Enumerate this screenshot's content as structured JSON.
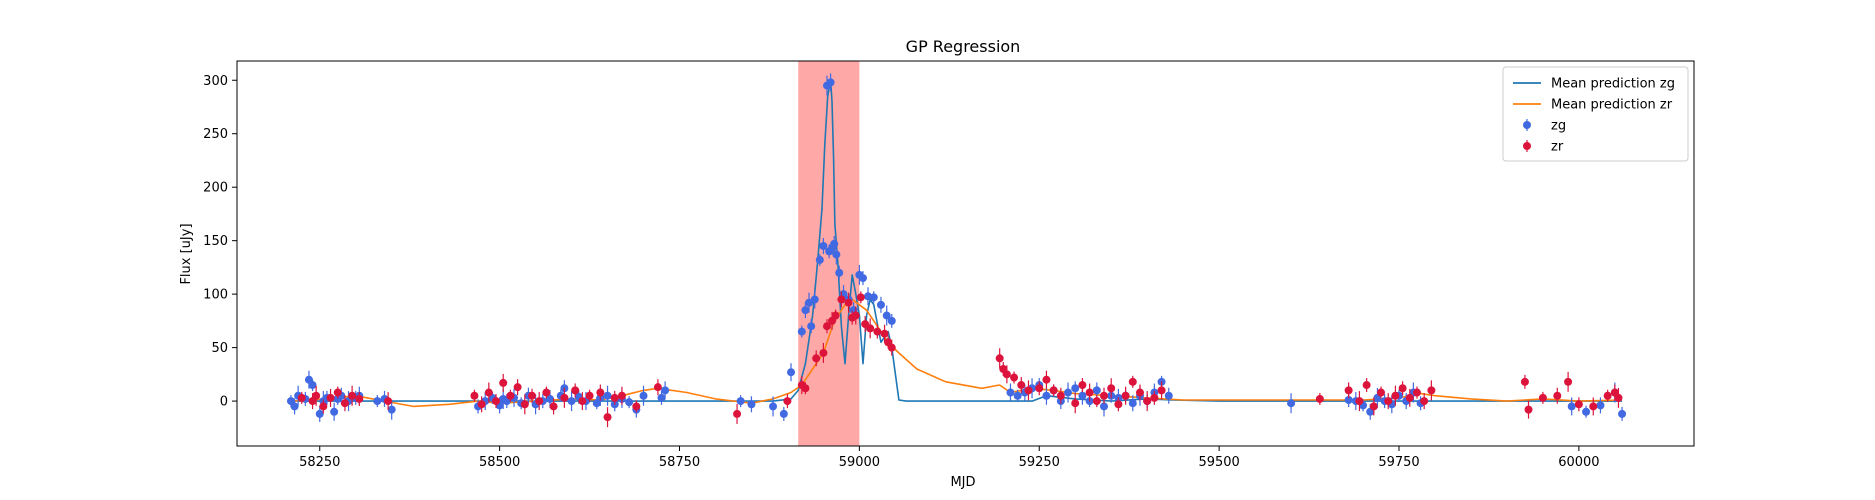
{
  "chart_data": {
    "type": "scatter",
    "title": "GP Regression",
    "xlabel": "MJD",
    "ylabel": "Flux [uJy]",
    "xlim": [
      58135,
      60160
    ],
    "ylim": [
      -42,
      318
    ],
    "xticks": [
      58250,
      58500,
      58750,
      59000,
      59250,
      59500,
      59750,
      60000
    ],
    "yticks": [
      0,
      50,
      100,
      150,
      200,
      250,
      300
    ],
    "grid": false,
    "legend_position": "top-right",
    "highlight_band": {
      "x0": 58915,
      "x1": 59000,
      "color": "#ff9999"
    },
    "legend": [
      {
        "label": "Mean prediction zg",
        "kind": "line",
        "color": "#1f77b4"
      },
      {
        "label": "Mean prediction zr",
        "kind": "line",
        "color": "#ff7f0e"
      },
      {
        "label": "zg",
        "kind": "marker",
        "color": "#4169e1"
      },
      {
        "label": "zr",
        "kind": "marker",
        "color": "#dc143c"
      }
    ],
    "series": [
      {
        "name": "Mean prediction zg",
        "type": "line",
        "color": "#1f77b4",
        "x": [
          58215,
          58260,
          58300,
          58340,
          58400,
          58500,
          58600,
          58700,
          58760,
          58800,
          58880,
          58905,
          58915,
          58925,
          58935,
          58942,
          58948,
          58952,
          58956,
          58960,
          58962,
          58964,
          58966,
          58970,
          58975,
          58980,
          58985,
          58990,
          58995,
          59000,
          59005,
          59010,
          59015,
          59020,
          59025,
          59030,
          59040,
          59045,
          59055,
          59065,
          59080,
          59150,
          59200,
          59240,
          59260,
          59300,
          59350,
          59400,
          59435,
          59500,
          59600,
          59700,
          59800,
          59900,
          60000,
          60060
        ],
        "y": [
          0,
          0,
          0,
          0,
          0,
          0,
          0,
          0,
          0,
          0,
          0,
          2,
          10,
          35,
          80,
          130,
          180,
          240,
          285,
          300,
          280,
          230,
          165,
          130,
          70,
          35,
          80,
          118,
          100,
          80,
          35,
          80,
          95,
          90,
          72,
          55,
          65,
          50,
          1,
          0,
          0,
          0,
          0,
          0,
          5,
          2,
          0,
          2,
          1,
          0,
          0,
          0,
          0,
          0,
          0,
          0
        ]
      },
      {
        "name": "Mean prediction zr",
        "type": "line",
        "color": "#ff7f0e",
        "x": [
          58215,
          58260,
          58300,
          58340,
          58380,
          58430,
          58470,
          58500,
          58550,
          58600,
          58640,
          58670,
          58700,
          58720,
          58760,
          58800,
          58850,
          58880,
          58905,
          58920,
          58935,
          58950,
          58965,
          58980,
          58990,
          59000,
          59010,
          59020,
          59030,
          59040,
          59055,
          59080,
          59120,
          59170,
          59195,
          59210,
          59240,
          59270,
          59300,
          59350,
          59400,
          59450,
          59500,
          59550,
          59600,
          59650,
          59700,
          59750,
          59780,
          59800,
          59850,
          59900,
          59950,
          60000,
          60060
        ],
        "y": [
          0,
          2,
          5,
          0,
          -5,
          -3,
          0,
          -2,
          0,
          2,
          1,
          5,
          10,
          12,
          8,
          2,
          -2,
          2,
          8,
          15,
          30,
          45,
          75,
          90,
          95,
          90,
          85,
          75,
          65,
          55,
          45,
          30,
          18,
          12,
          15,
          8,
          12,
          10,
          7,
          5,
          3,
          1,
          1,
          1,
          1,
          1,
          1,
          3,
          7,
          5,
          2,
          0,
          2,
          0,
          1
        ]
      },
      {
        "name": "zg",
        "type": "scatter",
        "color": "#4169e1",
        "x": [
          58210,
          58215,
          58220,
          58230,
          58235,
          58240,
          58250,
          58255,
          58260,
          58270,
          58275,
          58280,
          58290,
          58300,
          58305,
          58330,
          58340,
          58350,
          58470,
          58480,
          58490,
          58500,
          58505,
          58510,
          58520,
          58530,
          58540,
          58550,
          58560,
          58570,
          58585,
          58590,
          58600,
          58610,
          58620,
          58635,
          58640,
          58650,
          58660,
          58670,
          58680,
          58690,
          58700,
          58725,
          58730,
          58835,
          58850,
          58880,
          58895,
          58905,
          58920,
          58925,
          58930,
          58933,
          58938,
          58945,
          58950,
          58955,
          58958,
          58960,
          58962,
          58965,
          58968,
          58972,
          58978,
          58985,
          58992,
          59000,
          59005,
          59012,
          59020,
          59030,
          59038,
          59045,
          59210,
          59220,
          59230,
          59240,
          59250,
          59260,
          59270,
          59280,
          59290,
          59300,
          59310,
          59320,
          59330,
          59340,
          59350,
          59360,
          59370,
          59380,
          59390,
          59400,
          59410,
          59420,
          59430,
          59600,
          59680,
          59690,
          59700,
          59710,
          59720,
          59730,
          59740,
          59750,
          59760,
          59770,
          59780,
          59990,
          60010,
          60030,
          60050,
          60060
        ],
        "y": [
          0,
          -5,
          5,
          2,
          20,
          15,
          -12,
          0,
          3,
          -10,
          2,
          5,
          0,
          3,
          5,
          0,
          2,
          -8,
          -5,
          0,
          3,
          -4,
          2,
          0,
          3,
          -2,
          5,
          -3,
          0,
          2,
          5,
          12,
          0,
          4,
          0,
          -2,
          3,
          5,
          -3,
          2,
          -1,
          -8,
          5,
          3,
          10,
          0,
          -3,
          -5,
          -12,
          27,
          65,
          85,
          92,
          70,
          95,
          132,
          145,
          295,
          140,
          298,
          143,
          147,
          137,
          120,
          100,
          95,
          85,
          118,
          115,
          98,
          97,
          90,
          80,
          75,
          8,
          5,
          8,
          12,
          15,
          5,
          10,
          0,
          8,
          12,
          5,
          0,
          10,
          -5,
          5,
          3,
          5,
          -2,
          5,
          0,
          8,
          18,
          5,
          -2,
          1,
          0,
          -4,
          -10,
          3,
          0,
          -3,
          5,
          0,
          8,
          -2,
          -5,
          -10,
          -4,
          8,
          -12
        ]
      },
      {
        "name": "zr",
        "type": "scatter",
        "color": "#dc143c",
        "x": [
          58225,
          58240,
          58245,
          58255,
          58265,
          58275,
          58285,
          58295,
          58305,
          58345,
          58465,
          58475,
          58485,
          58495,
          58505,
          58515,
          58525,
          58535,
          58545,
          58555,
          58565,
          58575,
          58590,
          58605,
          58615,
          58625,
          58640,
          58650,
          58660,
          58670,
          58690,
          58720,
          58830,
          58900,
          58920,
          58925,
          58940,
          58950,
          58955,
          58962,
          58967,
          58975,
          58985,
          58990,
          58995,
          59002,
          59008,
          59015,
          59025,
          59035,
          59040,
          59045,
          59195,
          59200,
          59205,
          59215,
          59225,
          59235,
          59250,
          59260,
          59270,
          59280,
          59300,
          59310,
          59320,
          59330,
          59340,
          59350,
          59360,
          59370,
          59380,
          59390,
          59400,
          59410,
          59420,
          59640,
          59680,
          59695,
          59705,
          59715,
          59725,
          59735,
          59745,
          59755,
          59765,
          59775,
          59785,
          59795,
          59925,
          59930,
          59950,
          59970,
          59985,
          60000,
          60020,
          60040,
          60050,
          60055
        ],
        "y": [
          3,
          0,
          5,
          -5,
          3,
          8,
          -2,
          5,
          2,
          0,
          5,
          -3,
          8,
          0,
          17,
          5,
          13,
          -3,
          5,
          0,
          8,
          -5,
          3,
          10,
          0,
          5,
          8,
          -15,
          3,
          5,
          -5,
          13,
          -12,
          0,
          15,
          12,
          40,
          45,
          70,
          75,
          80,
          95,
          92,
          78,
          80,
          97,
          72,
          68,
          65,
          63,
          55,
          50,
          40,
          30,
          25,
          22,
          15,
          10,
          12,
          20,
          10,
          5,
          -2,
          15,
          8,
          0,
          5,
          12,
          -3,
          5,
          18,
          8,
          0,
          3,
          10,
          2,
          10,
          0,
          15,
          -5,
          8,
          0,
          5,
          12,
          3,
          8,
          0,
          10,
          18,
          -8,
          3,
          5,
          18,
          -3,
          -5,
          5,
          8,
          3
        ]
      }
    ]
  }
}
